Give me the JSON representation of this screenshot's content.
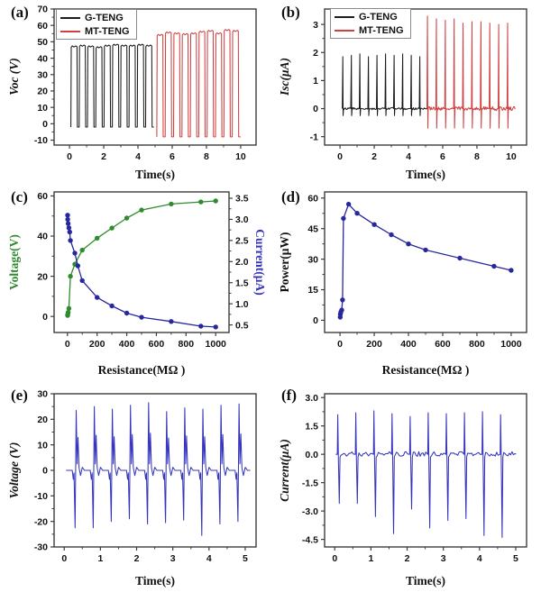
{
  "figure": {
    "background": "#ffffff",
    "colors": {
      "trace_black": "#1c1c1c",
      "trace_red": "#d04040",
      "voltage_green": "#2e8b2e",
      "navy_blue": "#28289e",
      "signal_blue": "#3636bd",
      "axis": "#3d3d3d"
    }
  },
  "panels": {
    "a": {
      "letter": "(a)",
      "xlabel": "Time(s)",
      "ylabel": "Voc (V)",
      "legend": [
        {
          "label": "G-TENG",
          "color": "trace_black"
        },
        {
          "label": "MT-TENG",
          "color": "trace_red"
        }
      ],
      "chart_data": {
        "type": "line",
        "xlim": [
          -0.9,
          10.9
        ],
        "ylim": [
          -13,
          70
        ],
        "xticks": [
          "0",
          "2",
          "4",
          "6",
          "8",
          "10"
        ],
        "yticks": [
          "-10",
          "0",
          "10",
          "20",
          "30",
          "40",
          "50",
          "60",
          "70"
        ],
        "series": [
          {
            "name": "G-TENG",
            "color": "trace_black",
            "waveform": "square-pulses",
            "t_start": 0.08,
            "period": 0.485,
            "high_fraction": 0.74,
            "low": -2,
            "peaks": [
              47.5,
              48,
              47.5,
              47,
              48,
              48.5,
              48,
              48,
              48.5,
              48
            ]
          },
          {
            "name": "MT-TENG",
            "color": "trace_red",
            "waveform": "square-pulses",
            "t_start": 5.1,
            "period": 0.49,
            "high_fraction": 0.72,
            "low": -8,
            "peaks": [
              54.5,
              56,
              55.5,
              55,
              55.5,
              56.5,
              57,
              55.5,
              57.5,
              57
            ]
          }
        ]
      }
    },
    "b": {
      "letter": "(b)",
      "xlabel": "Time(s)",
      "ylabel": "Isc(μA)",
      "legend": [
        {
          "label": "G-TENG",
          "color": "trace_black"
        },
        {
          "label": "MT-TENG",
          "color": "trace_red"
        }
      ],
      "chart_data": {
        "type": "line",
        "xlim": [
          -0.9,
          10.9
        ],
        "ylim": [
          -1.3,
          3.55
        ],
        "xticks": [
          "0",
          "2",
          "4",
          "6",
          "8",
          "10"
        ],
        "yticks": [
          "-1",
          "0",
          "1",
          "2",
          "3"
        ],
        "series": [
          {
            "name": "G-TENG",
            "color": "trace_black",
            "waveform": "spikes",
            "t_start": 0.15,
            "period": 0.5,
            "dip": -0.25,
            "baseline_noise": 0.04,
            "peaks": [
              1.85,
              1.9,
              1.95,
              1.85,
              1.9,
              1.95,
              1.9,
              1.95,
              1.9,
              1.85
            ]
          },
          {
            "name": "MT-TENG",
            "color": "trace_red",
            "waveform": "spikes",
            "t_start": 5.1,
            "period": 0.52,
            "dip": -0.7,
            "baseline_noise": 0.07,
            "peaks": [
              3.3,
              3.2,
              3.15,
              3.2,
              3.05,
              3.1,
              3.1,
              3.05,
              3.0,
              3.05
            ]
          }
        ]
      }
    },
    "c": {
      "letter": "(c)",
      "xlabel": "Resistance(MΩ )",
      "ylabel": "Voltage(V)",
      "y2label": "Current(μA)",
      "chart_data": {
        "type": "scatter",
        "xlim": [
          -90,
          1090
        ],
        "ylim": [
          -8,
          62
        ],
        "y2lim": [
          0.32,
          3.65
        ],
        "xticks": [
          "0",
          "200",
          "400",
          "600",
          "800",
          "1000"
        ],
        "yticks": [
          "0",
          "20",
          "40",
          "60"
        ],
        "y2ticks": [
          "0.5",
          "1.0",
          "1.5",
          "2.0",
          "2.5",
          "3.0",
          "3.5"
        ],
        "series": [
          {
            "name": "Voltage",
            "axis": "left",
            "color": "voltage_green",
            "x": [
              1,
              2,
              5,
              10,
              20,
              50,
              100,
              200,
              300,
              400,
              500,
              700,
              900,
              1000
            ],
            "y": [
              0.5,
              1,
              2,
              4,
              20,
              26,
              33,
              39,
              44,
              49,
              53,
              56,
              57,
              57.5
            ]
          },
          {
            "name": "Current",
            "axis": "right",
            "color": "navy_blue",
            "x": [
              1,
              2,
              5,
              10,
              15,
              20,
              50,
              70,
              100,
              200,
              300,
              400,
              500,
              700,
              900,
              1000
            ],
            "y": [
              3.1,
              3.0,
              2.9,
              2.8,
              2.7,
              2.5,
              2.2,
              1.9,
              1.55,
              1.15,
              0.95,
              0.78,
              0.68,
              0.58,
              0.47,
              0.45
            ]
          }
        ]
      }
    },
    "d": {
      "letter": "(d)",
      "xlabel": "Resistance(MΩ )",
      "ylabel": "Power(μW)",
      "chart_data": {
        "type": "scatter",
        "xlim": [
          -90,
          1090
        ],
        "ylim": [
          -6,
          63
        ],
        "xticks": [
          "0",
          "200",
          "400",
          "600",
          "800",
          "1000"
        ],
        "yticks": [
          "0",
          "15",
          "30",
          "45",
          "60"
        ],
        "series": [
          {
            "name": "Power",
            "axis": "left",
            "color": "navy_blue",
            "x": [
              1,
              2,
              5,
              10,
              15,
              20,
              50,
              100,
              200,
              300,
              400,
              500,
              700,
              900,
              1000
            ],
            "y": [
              1.5,
              3,
              4,
              5,
              10,
              50,
              57,
              52.5,
              47,
              42,
              37.5,
              34.5,
              30.5,
              26.5,
              24.5
            ]
          }
        ]
      }
    },
    "e": {
      "letter": "(e)",
      "xlabel": "Time(s)",
      "ylabel": "Voltage (V)",
      "chart_data": {
        "type": "line",
        "xlim": [
          -0.28,
          5.3
        ],
        "ylim": [
          -30,
          30
        ],
        "xticks": [
          "0",
          "1",
          "2",
          "3",
          "4",
          "5"
        ],
        "yticks": [
          "-30",
          "-20",
          "-10",
          "0",
          "10",
          "20",
          "30"
        ],
        "series": [
          {
            "name": "Voltage",
            "color": "signal_blue",
            "waveform": "biphasic",
            "t_start": 0.3,
            "period": 0.5,
            "peaks_pos": [
              23.5,
              25,
              24,
              25.5,
              26.5,
              23,
              24.5,
              24,
              25.5,
              26
            ],
            "peaks_neg": [
              -22.5,
              -22.5,
              -20,
              -19,
              -21,
              -20.5,
              -19.5,
              -25.5,
              -21,
              -20
            ]
          }
        ]
      }
    },
    "f": {
      "letter": "(f)",
      "xlabel": "Time(s)",
      "ylabel": "Current(μA)",
      "chart_data": {
        "type": "line",
        "xlim": [
          -0.28,
          5.3
        ],
        "ylim": [
          -4.9,
          3.2
        ],
        "xticks": [
          "0",
          "1",
          "2",
          "3",
          "4",
          "5"
        ],
        "yticks": [
          "-4.5",
          "-3.0",
          "-1.5",
          "0.0",
          "1.5",
          "3.0"
        ],
        "series": [
          {
            "name": "Current",
            "color": "signal_blue",
            "waveform": "bipolar-spikes",
            "t_start": 0.07,
            "period": 0.5,
            "baseline_noise": 0.13,
            "peaks_pos": [
              2.1,
              2.2,
              2.3,
              2.15,
              2.0,
              2.2,
              2.15,
              2.2,
              2.25,
              2.1
            ],
            "peaks_neg": [
              -2.6,
              -2.6,
              -3.3,
              -4.2,
              -2.9,
              -3.9,
              -3.5,
              -3.4,
              -4.3,
              -4.4
            ]
          }
        ]
      }
    }
  }
}
